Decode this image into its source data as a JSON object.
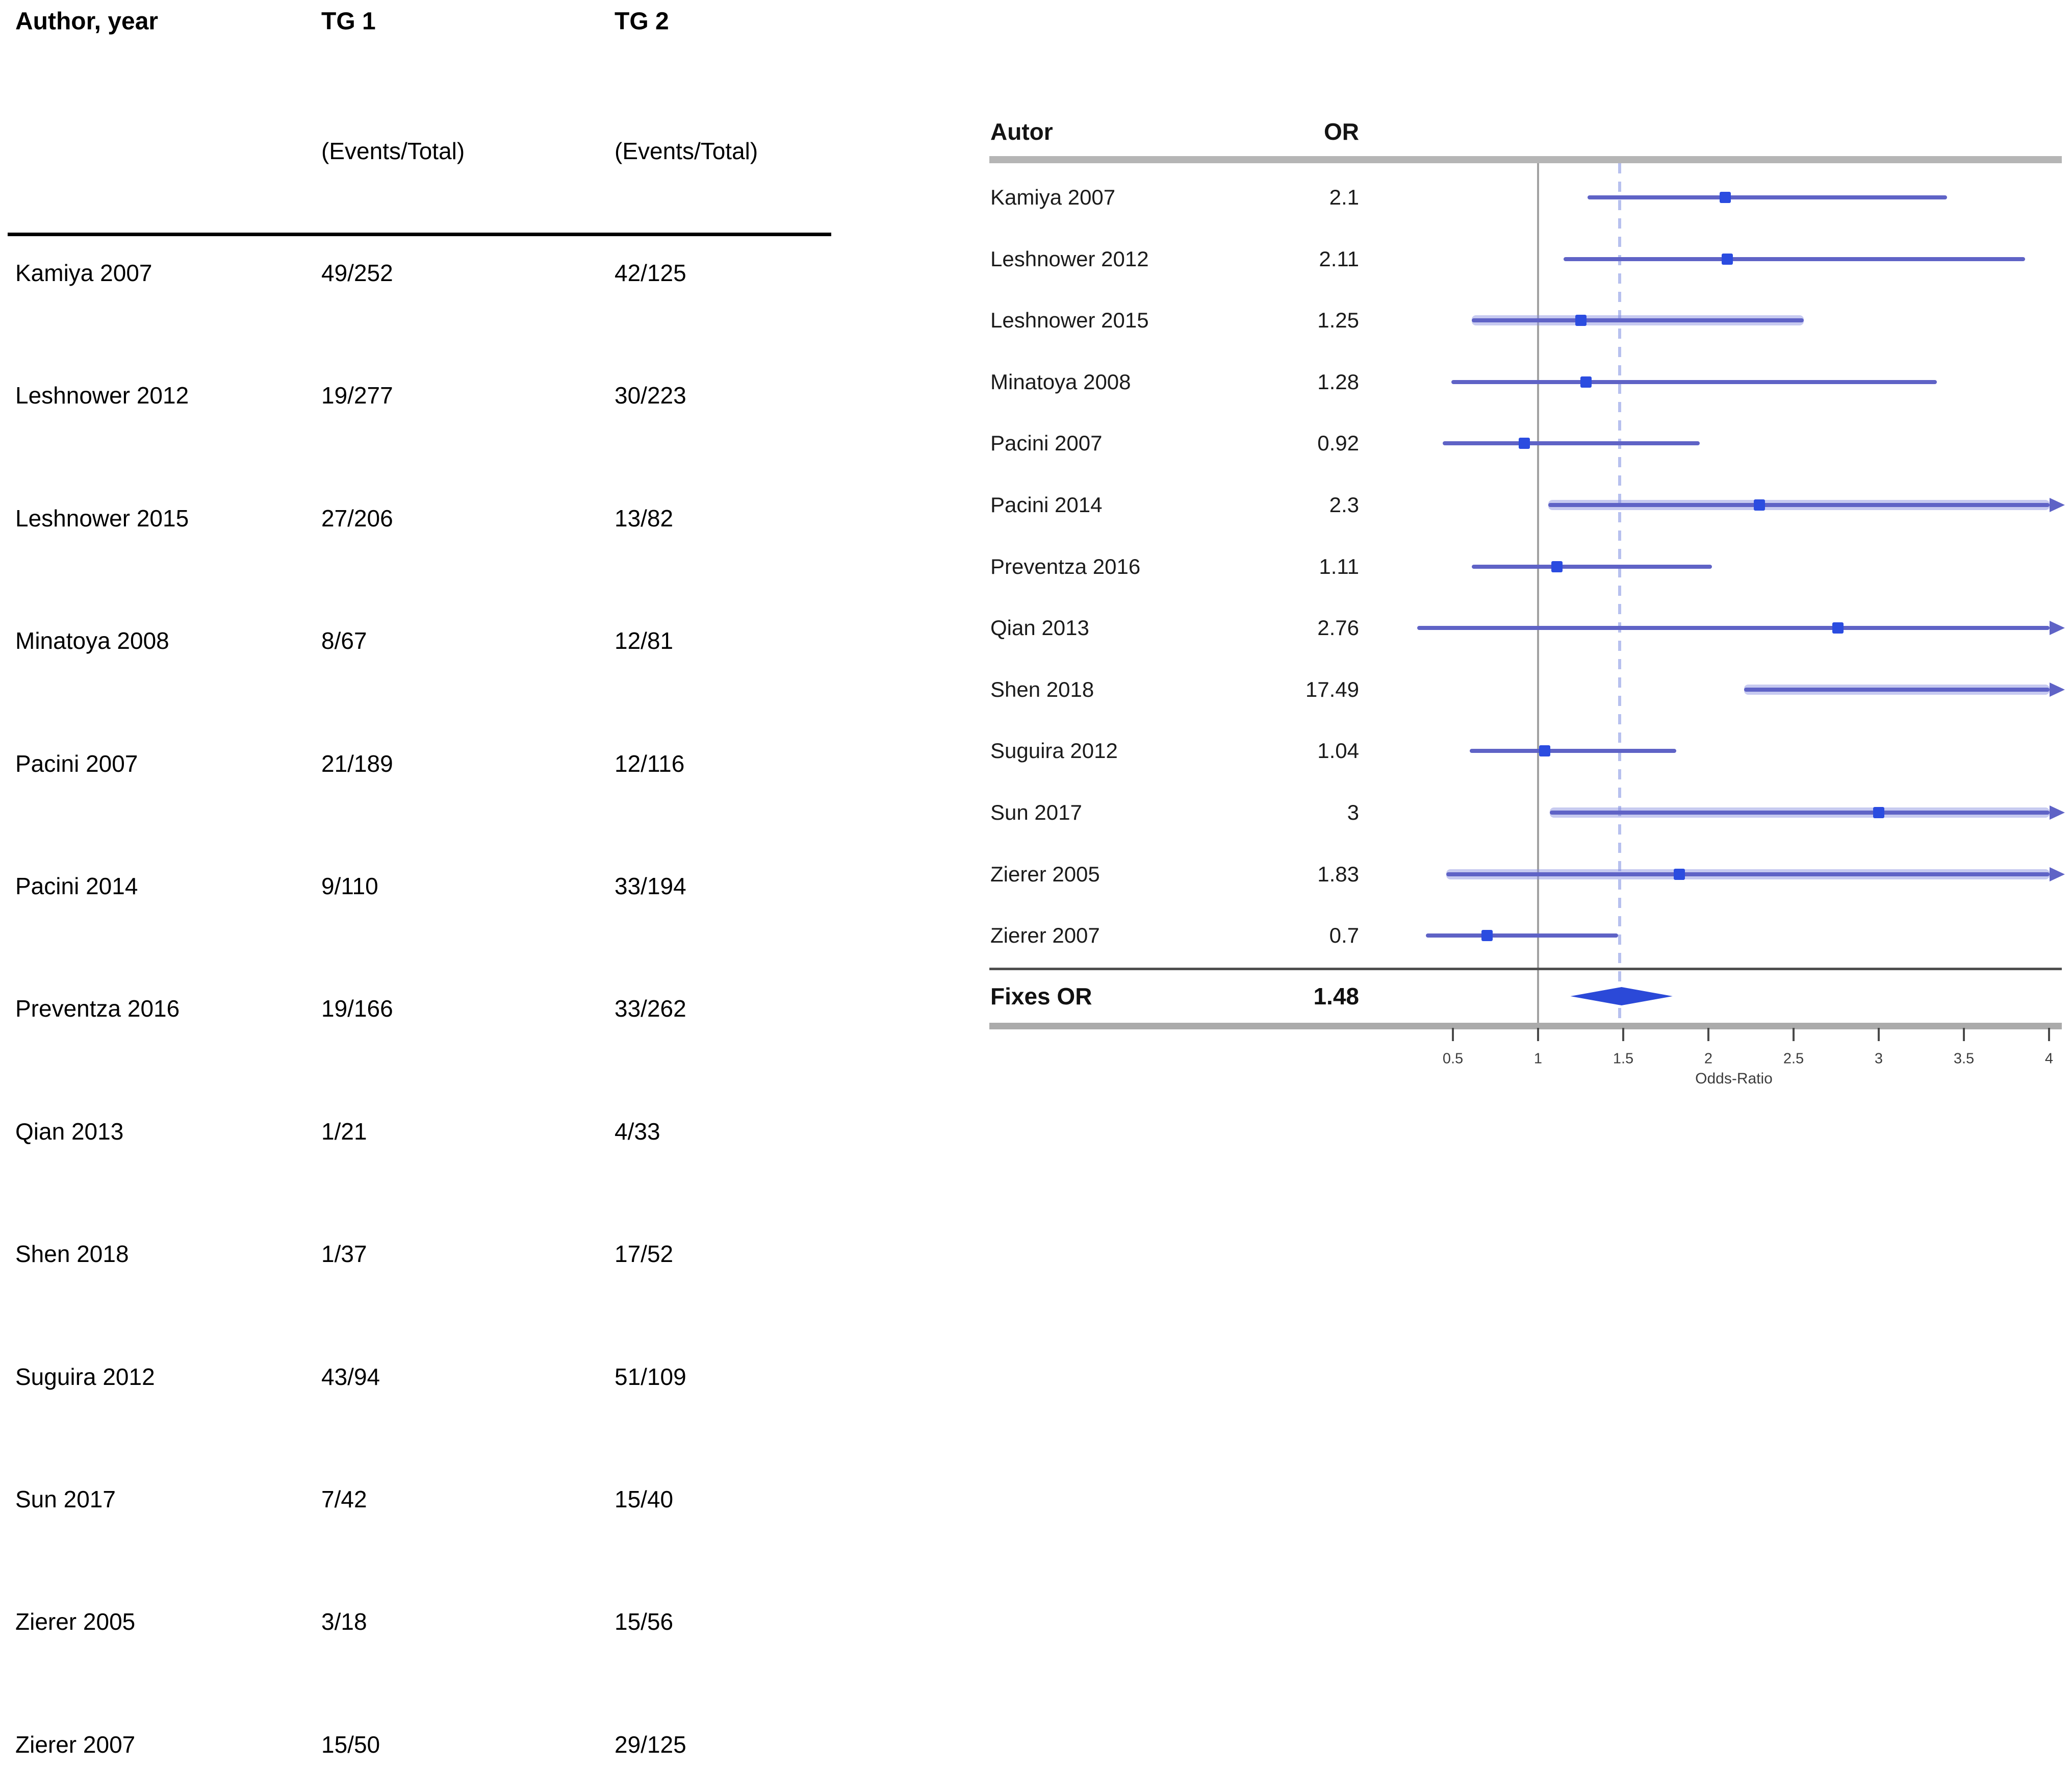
{
  "colors": {
    "ci_line": "#5f63c6",
    "ci_band": "rgba(130,138,222,0.45)",
    "marker": "#2b4ce0",
    "diamond": "#2b49d8",
    "ref_line": "#a2a2a2",
    "pooled_line": "#b7c0ee"
  },
  "table": {
    "header": {
      "author": "Author, year",
      "tg1": "TG 1",
      "tg2": "TG 2"
    },
    "subheader": {
      "tg1": "(Events/Total)",
      "tg2": "(Events/Total)"
    },
    "rows": [
      {
        "author": "Kamiya 2007",
        "tg1": "49/252",
        "tg2": "42/125"
      },
      {
        "author": "Leshnower 2012",
        "tg1": "19/277",
        "tg2": "30/223"
      },
      {
        "author": "Leshnower 2015",
        "tg1": "27/206",
        "tg2": "13/82"
      },
      {
        "author": "Minatoya 2008",
        "tg1": "8/67",
        "tg2": "12/81"
      },
      {
        "author": "Pacini 2007",
        "tg1": "21/189",
        "tg2": "12/116"
      },
      {
        "author": "Pacini 2014",
        "tg1": "9/110",
        "tg2": "33/194"
      },
      {
        "author": "Preventza 2016",
        "tg1": "19/166",
        "tg2": "33/262"
      },
      {
        "author": "Qian 2013",
        "tg1": "1/21",
        "tg2": "4/33"
      },
      {
        "author": "Shen 2018",
        "tg1": "1/37",
        "tg2": "17/52"
      },
      {
        "author": "Suguira 2012",
        "tg1": "43/94",
        "tg2": "51/109"
      },
      {
        "author": "Sun 2017",
        "tg1": "7/42",
        "tg2": "15/40"
      },
      {
        "author": "Zierer 2005",
        "tg1": "3/18",
        "tg2": "15/56"
      },
      {
        "author": "Zierer 2007",
        "tg1": "15/50",
        "tg2": "29/125"
      }
    ]
  },
  "chart_data": {
    "type": "forest",
    "col_author": "Autor",
    "col_or": "OR",
    "xlabel": "Odds-Ratio",
    "xlim": [
      0.5,
      4
    ],
    "x_ticks": [
      "0.5",
      "1",
      "1.5",
      "2",
      "2.5",
      "3",
      "3.5",
      "4"
    ],
    "ref_line": 1,
    "pooled_dashed_line": 1.48,
    "studies": [
      {
        "label": "Kamiya 2007",
        "or_text": "2.1",
        "or": 2.1,
        "ci_lo": 1.29,
        "ci_hi": 3.4,
        "arrow": false,
        "band": false,
        "marker": true
      },
      {
        "label": "Leshnower 2012",
        "or_text": "2.11",
        "or": 2.11,
        "ci_lo": 1.15,
        "ci_hi": 3.86,
        "arrow": false,
        "band": false,
        "marker": true
      },
      {
        "label": "Leshnower 2015",
        "or_text": "1.25",
        "or": 1.25,
        "ci_lo": 0.61,
        "ci_hi": 2.56,
        "arrow": false,
        "band": true,
        "marker": true
      },
      {
        "label": "Minatoya 2008",
        "or_text": "1.28",
        "or": 1.28,
        "ci_lo": 0.49,
        "ci_hi": 3.34,
        "arrow": false,
        "band": false,
        "marker": true
      },
      {
        "label": "Pacini 2007",
        "or_text": "0.92",
        "or": 0.92,
        "ci_lo": 0.44,
        "ci_hi": 1.95,
        "arrow": false,
        "band": false,
        "marker": true
      },
      {
        "label": "Pacini 2014",
        "or_text": "2.3",
        "or": 2.3,
        "ci_lo": 1.06,
        "ci_hi": 5.01,
        "arrow": true,
        "band": true,
        "marker": true
      },
      {
        "label": "Preventza 2016",
        "or_text": "1.11",
        "or": 1.11,
        "ci_lo": 0.61,
        "ci_hi": 2.02,
        "arrow": false,
        "band": false,
        "marker": true
      },
      {
        "label": "Qian 2013",
        "or_text": "2.76",
        "or": 2.76,
        "ci_lo": 0.29,
        "ci_hi": 26.5,
        "arrow": true,
        "band": false,
        "marker": true
      },
      {
        "label": "Shen 2018",
        "or_text": "17.49",
        "or": 17.49,
        "ci_lo": 2.21,
        "ci_hi": 138.5,
        "arrow": true,
        "band": true,
        "marker": false
      },
      {
        "label": "Suguira 2012",
        "or_text": "1.04",
        "or": 1.04,
        "ci_lo": 0.6,
        "ci_hi": 1.81,
        "arrow": false,
        "band": false,
        "marker": true
      },
      {
        "label": "Sun 2017",
        "or_text": "3",
        "or": 3,
        "ci_lo": 1.07,
        "ci_hi": 8.43,
        "arrow": true,
        "band": true,
        "marker": true
      },
      {
        "label": "Zierer 2005",
        "or_text": "1.83",
        "or": 1.83,
        "ci_lo": 0.46,
        "ci_hi": 7.22,
        "arrow": true,
        "band": true,
        "marker": true
      },
      {
        "label": "Zierer 2007",
        "or_text": "0.7",
        "or": 0.7,
        "ci_lo": 0.34,
        "ci_hi": 1.47,
        "arrow": false,
        "band": false,
        "marker": true
      }
    ],
    "summary": {
      "label": "Fixes OR",
      "or_text": "1.48",
      "or": 1.48,
      "ci_lo": 1.19,
      "ci_hi": 1.79
    }
  }
}
